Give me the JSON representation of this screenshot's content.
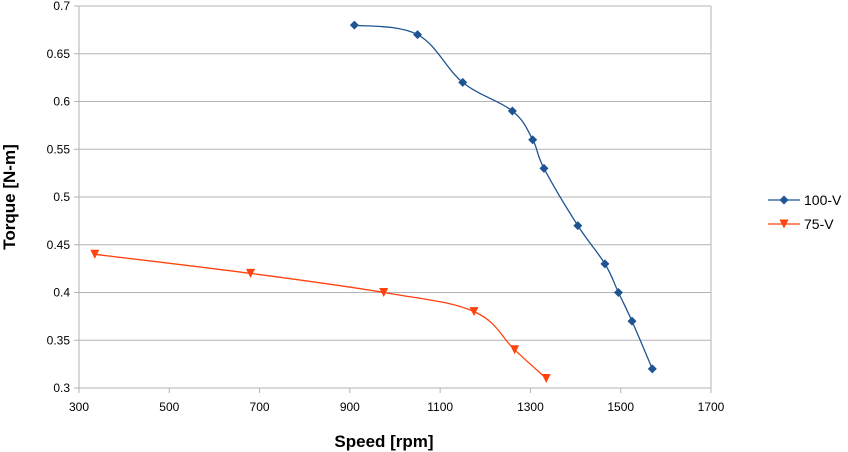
{
  "chart_data": {
    "type": "line",
    "smooth": true,
    "xlabel": "Speed [rpm]",
    "ylabel": "Torque [N-m]",
    "xlim": [
      300,
      1700
    ],
    "ylim": [
      0.3,
      0.7
    ],
    "x_ticks": [
      "300",
      "500",
      "700",
      "900",
      "1100",
      "1300",
      "1500",
      "1700"
    ],
    "y_ticks": [
      "0.3",
      "0.35",
      "0.4",
      "0.45",
      "0.5",
      "0.55",
      "0.6",
      "0.65",
      "0.7"
    ],
    "grid": "horizontal",
    "legend_position": "right",
    "series": [
      {
        "name": "100-V",
        "color": "#1f5493",
        "marker": "diamond",
        "points": [
          [
            910,
            0.68
          ],
          [
            1050,
            0.67
          ],
          [
            1150,
            0.62
          ],
          [
            1260,
            0.59
          ],
          [
            1305,
            0.56
          ],
          [
            1330,
            0.53
          ],
          [
            1405,
            0.47
          ],
          [
            1465,
            0.43
          ],
          [
            1495,
            0.4
          ],
          [
            1525,
            0.37
          ],
          [
            1570,
            0.32
          ]
        ]
      },
      {
        "name": "75-V",
        "color": "#ff420e",
        "marker": "triangle-down",
        "points": [
          [
            335,
            0.44
          ],
          [
            680,
            0.42
          ],
          [
            975,
            0.4
          ],
          [
            1175,
            0.38
          ],
          [
            1265,
            0.34
          ],
          [
            1335,
            0.31
          ]
        ]
      }
    ]
  }
}
